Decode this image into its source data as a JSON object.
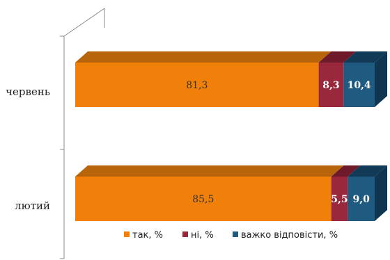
{
  "chart_data": {
    "type": "bar",
    "orientation": "horizontal",
    "stacked": true,
    "three_d": true,
    "categories": [
      "червень",
      "лютий"
    ],
    "series": [
      {
        "name": "так, %",
        "values": [
          81.3,
          85.5
        ],
        "labels": [
          "81,3",
          "85,5"
        ],
        "color": "#f0800a",
        "top_color": "#b8640a",
        "side_color": "#a35508",
        "label_color": "#333333"
      },
      {
        "name": "ні, %",
        "values": [
          8.3,
          5.5
        ],
        "labels": [
          "8,3",
          "5,5"
        ],
        "color": "#99283c",
        "top_color": "#6f1a2a",
        "side_color": "#5e1524",
        "label_color": "#ffffff"
      },
      {
        "name": "важко відповісти, %",
        "values": [
          10.4,
          9.0
        ],
        "labels": [
          "10,4",
          "9,0"
        ],
        "color": "#1f5a80",
        "top_color": "#113a56",
        "side_color": "#0f3550",
        "label_color": "#ffffff"
      }
    ],
    "xlim": [
      0,
      100
    ],
    "legend_position": "bottom-right",
    "grid": false
  }
}
